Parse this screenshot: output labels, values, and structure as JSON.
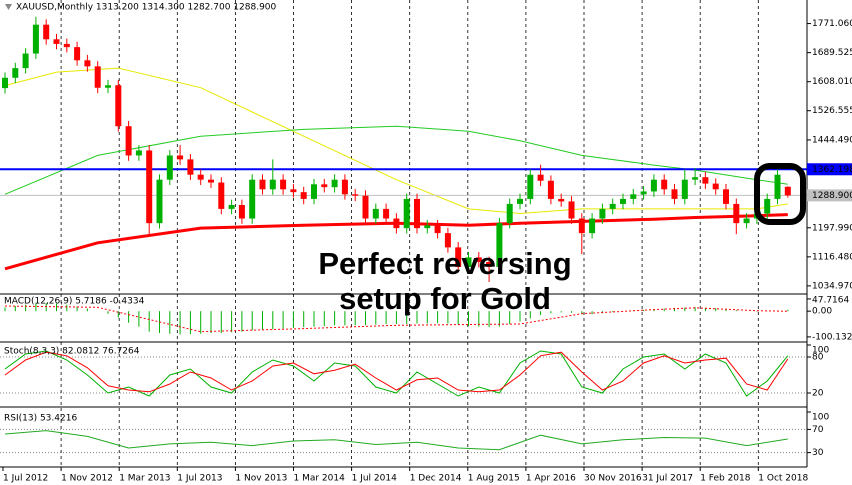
{
  "chart_data": [
    {
      "type": "candlestick",
      "title": "XAUUSD,Monthly  1313.200 1314.300 1282.700 1288.900",
      "up_color": "#00b000",
      "down_color": "#ff0000",
      "open": [
        1590,
        1619,
        1646,
        1687,
        1768,
        1727,
        1714,
        1705,
        1668,
        1651,
        1591,
        1598,
        1483,
        1401,
        1415,
        1211,
        1333,
        1401,
        1390,
        1347,
        1333,
        1325,
        1251,
        1262,
        1224,
        1333,
        1306,
        1333,
        1306,
        1298,
        1279,
        1320,
        1312,
        1333,
        1292,
        1288,
        1224,
        1251,
        1224,
        1197,
        1279,
        1197,
        1205,
        1183,
        1143,
        1088,
        1115,
        1102,
        1088,
        1211,
        1265,
        1279,
        1347,
        1330,
        1279,
        1272,
        1224,
        1183,
        1224,
        1251,
        1265,
        1279,
        1292,
        1300,
        1333,
        1306,
        1279,
        1333,
        1340,
        1322,
        1306,
        1265,
        1211,
        1224,
        1238,
        1279,
        1313.2
      ],
      "high": [
        1634,
        1661,
        1702,
        1790,
        1783,
        1742,
        1729,
        1720,
        1683,
        1666,
        1613,
        1613,
        1498,
        1430,
        1430,
        1348,
        1416,
        1430,
        1405,
        1362,
        1348,
        1340,
        1277,
        1277,
        1348,
        1348,
        1390,
        1348,
        1321,
        1313,
        1335,
        1335,
        1348,
        1348,
        1307,
        1303,
        1266,
        1266,
        1239,
        1294,
        1294,
        1220,
        1220,
        1198,
        1158,
        1130,
        1130,
        1117,
        1226,
        1280,
        1294,
        1362,
        1375,
        1345,
        1294,
        1287,
        1239,
        1239,
        1266,
        1280,
        1294,
        1307,
        1315,
        1348,
        1348,
        1321,
        1362,
        1366,
        1355,
        1337,
        1321,
        1280,
        1239,
        1253,
        1294,
        1362,
        1314.3
      ],
      "low": [
        1575,
        1604,
        1631,
        1672,
        1712,
        1699,
        1690,
        1653,
        1636,
        1576,
        1576,
        1468,
        1386,
        1386,
        1180,
        1196,
        1318,
        1375,
        1332,
        1318,
        1310,
        1236,
        1236,
        1209,
        1209,
        1291,
        1291,
        1291,
        1283,
        1264,
        1264,
        1297,
        1297,
        1277,
        1273,
        1209,
        1209,
        1209,
        1182,
        1182,
        1182,
        1182,
        1168,
        1128,
        1073,
        1073,
        1087,
        1046,
        1073,
        1196,
        1250,
        1264,
        1315,
        1264,
        1257,
        1209,
        1124,
        1168,
        1209,
        1236,
        1250,
        1264,
        1277,
        1285,
        1291,
        1264,
        1264,
        1318,
        1307,
        1291,
        1250,
        1180,
        1196,
        1209,
        1223,
        1264,
        1282.7
      ],
      "close": [
        1619,
        1646,
        1687,
        1768,
        1727,
        1714,
        1705,
        1668,
        1651,
        1591,
        1598,
        1483,
        1401,
        1415,
        1211,
        1333,
        1401,
        1390,
        1347,
        1333,
        1325,
        1251,
        1262,
        1224,
        1333,
        1306,
        1333,
        1306,
        1298,
        1279,
        1320,
        1312,
        1333,
        1292,
        1288,
        1224,
        1251,
        1224,
        1197,
        1279,
        1197,
        1205,
        1183,
        1143,
        1088,
        1115,
        1102,
        1088,
        1211,
        1265,
        1279,
        1347,
        1330,
        1279,
        1272,
        1224,
        1183,
        1224,
        1251,
        1265,
        1279,
        1292,
        1300,
        1333,
        1306,
        1279,
        1333,
        1340,
        1322,
        1306,
        1265,
        1211,
        1224,
        1238,
        1279,
        1347,
        1288.9
      ],
      "moving_averages": [
        {
          "color": "#e8e800",
          "x": [
            0,
            5,
            11,
            19,
            29,
            38,
            45,
            50,
            56,
            63,
            67,
            73,
            76
          ],
          "values": [
            1597,
            1635,
            1646,
            1591,
            1455,
            1333,
            1251,
            1238,
            1251,
            1251,
            1251,
            1251,
            1265
          ]
        },
        {
          "color": "#22cc22",
          "x": [
            0,
            9,
            19,
            29,
            38,
            45,
            50,
            56,
            63,
            67,
            73,
            76
          ],
          "values": [
            1292,
            1401,
            1455,
            1474,
            1483,
            1469,
            1442,
            1401,
            1374,
            1360,
            1333,
            1320
          ]
        },
        {
          "color": "#ff0000",
          "x": [
            0,
            9,
            19,
            29,
            38,
            45,
            50,
            56,
            63,
            67,
            73,
            76
          ],
          "values": [
            1083,
            1156,
            1197,
            1205,
            1211,
            1205,
            1211,
            1216,
            1222,
            1227,
            1232,
            1235
          ]
        }
      ],
      "levels": [
        {
          "value": 1362.198,
          "label": "1362.198",
          "color": "#0000ff",
          "text_color": "#ffffff"
        },
        {
          "value": 1288.9,
          "label": "1288.900",
          "color": "#c0c0c0",
          "text_color": "#000000"
        }
      ],
      "ylim": [
        1015,
        1826
      ],
      "yticks": [
        {
          "value": 1771.06,
          "label": "1771.060"
        },
        {
          "value": 1689.525,
          "label": "1689.525"
        },
        {
          "value": 1608.01,
          "label": "1608.010"
        },
        {
          "value": 1526.555,
          "label": "1526.555"
        },
        {
          "value": 1444.49,
          "label": "1444.490"
        },
        {
          "value": 1197.99,
          "label": "1197.990"
        },
        {
          "value": 1116.48,
          "label": "1116.480"
        },
        {
          "value": 1034.97,
          "label": "1034.970"
        }
      ],
      "annotations": [
        "Perfect reversing",
        "setup for Gold"
      ],
      "annotation_color": "#ff2020"
    },
    {
      "type": "macd",
      "title": "MACD(12,26,9) 5.7186 -0.4334",
      "ylim": [
        -120,
        63
      ],
      "yticks": [
        47.7164,
        {
          "value": 0,
          "label": "0.00"
        },
        -100.1325
      ],
      "histogram": {
        "color": "#00b000",
        "values": [
          15,
          20,
          25,
          30,
          32,
          30,
          25,
          18,
          10,
          0,
          -10,
          -25,
          -45,
          -60,
          -80,
          -85,
          -88,
          -90,
          -90,
          -88,
          -85,
          -85,
          -82,
          -80,
          -75,
          -72,
          -70,
          -68,
          -65,
          -62,
          -60,
          -58,
          -55,
          -55,
          -55,
          -55,
          -52,
          -50,
          -50,
          -50,
          -48,
          -48,
          -47,
          -48,
          -52,
          -58,
          -60,
          -62,
          -60,
          -50,
          -40,
          -28,
          -15,
          -8,
          -5,
          -6,
          -10,
          -12,
          -8,
          -4,
          0,
          3,
          5,
          8,
          10,
          12,
          14,
          15,
          14,
          12,
          8,
          4,
          0,
          -2,
          -1,
          3,
          5.7186
        ]
      },
      "signal": {
        "color": "#ff0000",
        "x": [
          0,
          9,
          19,
          29,
          38,
          45,
          50,
          56,
          63,
          67,
          73,
          76
        ],
        "values": [
          20,
          15,
          -80,
          -68,
          -55,
          -52,
          -50,
          -10,
          6,
          13,
          2,
          -0.4334
        ]
      }
    },
    {
      "type": "line",
      "title": "Stoch(8,3,3) 82.0812 76.7264",
      "ylim": [
        0,
        100
      ],
      "yticks": [
        100,
        80,
        20
      ],
      "grid": true,
      "series": [
        {
          "color": "#00b000",
          "x": [
            0,
            2,
            4,
            6,
            8,
            10,
            12,
            14,
            16,
            18,
            20,
            22,
            24,
            26,
            28,
            30,
            32,
            34,
            36,
            38,
            40,
            42,
            44,
            46,
            48,
            50,
            52,
            54,
            56,
            58,
            60,
            62,
            64,
            66,
            68,
            70,
            72,
            74,
            76
          ],
          "values": [
            60,
            85,
            90,
            75,
            50,
            20,
            30,
            15,
            50,
            60,
            30,
            20,
            55,
            75,
            65,
            40,
            70,
            65,
            30,
            20,
            55,
            35,
            15,
            30,
            20,
            70,
            90,
            85,
            30,
            20,
            60,
            80,
            85,
            60,
            85,
            70,
            15,
            40,
            82.0812
          ]
        },
        {
          "color": "#ff0000",
          "x": [
            0,
            2,
            4,
            6,
            8,
            10,
            12,
            14,
            16,
            18,
            20,
            22,
            24,
            26,
            28,
            30,
            32,
            34,
            36,
            38,
            40,
            42,
            44,
            46,
            48,
            50,
            52,
            54,
            56,
            58,
            60,
            62,
            64,
            66,
            68,
            70,
            72,
            74,
            76
          ],
          "values": [
            50,
            75,
            88,
            82,
            62,
            32,
            25,
            22,
            35,
            55,
            45,
            25,
            40,
            65,
            70,
            52,
            58,
            68,
            45,
            25,
            42,
            45,
            25,
            22,
            25,
            50,
            82,
            88,
            55,
            25,
            40,
            70,
            82,
            70,
            75,
            78,
            35,
            25,
            76.7264
          ]
        }
      ]
    },
    {
      "type": "line",
      "title": "RSI(13) 53.4216",
      "ylim": [
        0,
        100
      ],
      "yticks": [
        100,
        70,
        30
      ],
      "grid": true,
      "series": [
        {
          "color": "#22aa22",
          "x": [
            0,
            4,
            8,
            12,
            16,
            20,
            24,
            28,
            32,
            36,
            40,
            44,
            48,
            52,
            56,
            60,
            64,
            68,
            72,
            76
          ],
          "values": [
            62,
            68,
            58,
            38,
            45,
            48,
            42,
            50,
            52,
            44,
            48,
            38,
            35,
            60,
            45,
            52,
            56,
            55,
            42,
            53.4216
          ]
        }
      ]
    }
  ],
  "time_axis": [
    "1 Jul 2012",
    "1 Nov 2012",
    "1 Mar 2013",
    "1 Jul 2013",
    "1 Nov 2013",
    "1 Mar 2014",
    "1 Jul 2014",
    "1 Dec 2014",
    "1 Aug 2015",
    "1 Apr 2016",
    "30 Nov 2016",
    "31 Jul 2017",
    "1 Feb 2018",
    "1 Oct 2018"
  ]
}
